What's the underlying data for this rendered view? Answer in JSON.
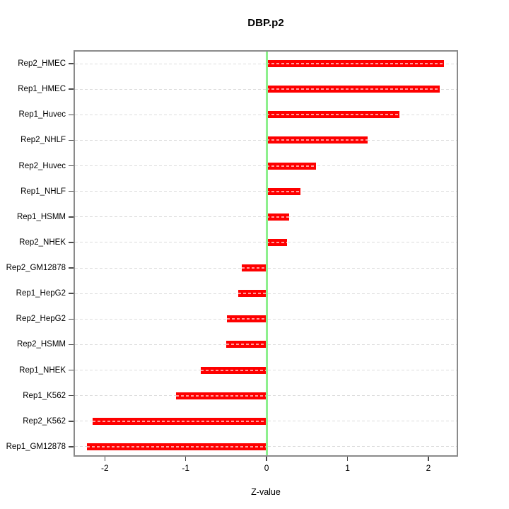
{
  "title": "DBP.p2",
  "chart_data": {
    "type": "bar",
    "orientation": "horizontal",
    "title": "DBP.p2",
    "xlabel": "Z-value",
    "categories": [
      "Rep2_HMEC",
      "Rep1_HMEC",
      "Rep1_Huvec",
      "Rep2_NHLF",
      "Rep2_Huvec",
      "Rep1_NHLF",
      "Rep1_HSMM",
      "Rep2_NHEK",
      "Rep2_GM12878",
      "Rep1_HepG2",
      "Rep2_HepG2",
      "Rep2_HSMM",
      "Rep1_NHEK",
      "Rep1_K562",
      "Rep2_K562",
      "Rep1_GM12878"
    ],
    "values": [
      2.19,
      2.14,
      1.64,
      1.25,
      0.61,
      0.42,
      0.28,
      0.25,
      -0.31,
      -0.35,
      -0.49,
      -0.5,
      -0.81,
      -1.12,
      -2.15,
      -2.22
    ],
    "xticks": [
      "-2",
      "-1",
      "0",
      "1",
      "2"
    ],
    "xtick_values": [
      -2,
      -1,
      0,
      1,
      2
    ],
    "xlim": [
      -2.37,
      2.35
    ],
    "bar_color": "#fe0000",
    "zero_line_color": "#8df08d",
    "grid": "dashed horizontal gridline per category",
    "legend": "none"
  }
}
